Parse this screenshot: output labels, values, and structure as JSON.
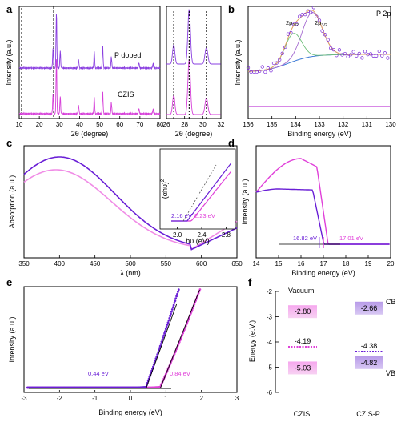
{
  "panels": [
    {
      "id": "a",
      "label": "a"
    },
    {
      "id": "b",
      "label": "b"
    },
    {
      "id": "c",
      "label": "c"
    },
    {
      "id": "d",
      "label": "d"
    },
    {
      "id": "e",
      "label": "e"
    },
    {
      "id": "f",
      "label": "f"
    }
  ],
  "colors": {
    "violet": "#6a1fd6",
    "magenta": "#e03fd9",
    "pink": "#f08ce6",
    "blue": "#3d7bd6",
    "green": "#6fbf7a",
    "purple_fit": "#a46ad0",
    "orange": "#e0a060"
  },
  "chart_data": [
    {
      "id": "a",
      "type": "line",
      "xlabel": "2θ (degree)",
      "ylabel": "Intensity (a.u.)",
      "xlim": [
        10,
        80
      ],
      "xticks": [
        "10",
        "20",
        "30",
        "40",
        "50",
        "60",
        "70",
        "80"
      ],
      "series": [
        {
          "name": "P doped",
          "color": "#6a1fd6",
          "peaks": [
            [
              26.8,
              0.35
            ],
            [
              28.5,
              1.0
            ],
            [
              30.4,
              0.3
            ],
            [
              39.5,
              0.15
            ],
            [
              47.3,
              0.3
            ],
            [
              51.5,
              0.4
            ],
            [
              55.8,
              0.2
            ],
            [
              69.5,
              0.1
            ],
            [
              76.5,
              0.08
            ]
          ]
        },
        {
          "name": "CZIS",
          "color": "#e03fd9",
          "peaks": [
            [
              26.8,
              0.35
            ],
            [
              28.5,
              1.0
            ],
            [
              30.4,
              0.3
            ],
            [
              39.5,
              0.15
            ],
            [
              47.3,
              0.3
            ],
            [
              51.5,
              0.4
            ],
            [
              55.8,
              0.2
            ],
            [
              69.5,
              0.1
            ],
            [
              76.5,
              0.08
            ]
          ]
        }
      ]
    },
    {
      "id": "a-inset",
      "type": "line",
      "xlabel": "2θ (degree)",
      "xlim": [
        26,
        32
      ],
      "xticks": [
        "26",
        "28",
        "30",
        "32"
      ],
      "dashed_lines_x": [
        26.8,
        28.5,
        30.4
      ]
    },
    {
      "id": "b",
      "type": "line",
      "xlabel": "Binding energy (eV)",
      "ylabel": "Intensity (a.u.)",
      "xlim": [
        136,
        130
      ],
      "xticks": [
        "136",
        "135",
        "134",
        "133",
        "132",
        "131",
        "130"
      ],
      "annotation": "P 2p",
      "peak_labels": [
        "2p",
        "1/2",
        "2p",
        "3/2"
      ]
    },
    {
      "id": "c",
      "type": "line",
      "xlabel": "λ (nm)",
      "ylabel": "Absorption (a.u.)",
      "xlim": [
        350,
        650
      ],
      "xticks": [
        "350",
        "400",
        "450",
        "500",
        "550",
        "600",
        "650"
      ],
      "inset": {
        "xlabel": "hυ (eV)",
        "ylabel": "(αhυ)",
        "ylabel_sup": "2",
        "xticks": [
          "2.0",
          "2.4",
          "2.8"
        ],
        "gap_labels": [
          "2.16 eV",
          "2.23 eV"
        ]
      }
    },
    {
      "id": "d",
      "type": "line",
      "xlabel": "Binding energy (eV)",
      "ylabel": "Intensity (a.u.)",
      "xlim": [
        14,
        20
      ],
      "xticks": [
        "14",
        "15",
        "16",
        "17",
        "18",
        "19",
        "20"
      ],
      "cutoffs": [
        {
          "label": "16.82 eV",
          "value": 16.82,
          "color": "#6a1fd6"
        },
        {
          "label": "17.01 eV",
          "value": 17.01,
          "color": "#e03fd9"
        }
      ]
    },
    {
      "id": "e",
      "type": "scatter",
      "xlabel": "Binding energy (eV)",
      "ylabel": "Intensity (a.u.)",
      "xlim": [
        -3,
        3
      ],
      "xticks": [
        "-3",
        "-2",
        "-1",
        "0",
        "1",
        "2",
        "3"
      ],
      "edges": [
        {
          "label": "0.44 eV",
          "value": 0.44,
          "color": "#6a1fd6"
        },
        {
          "label": "0.84 eV",
          "value": 0.84,
          "color": "#e03fd9"
        }
      ]
    },
    {
      "id": "f",
      "type": "bar",
      "ylabel": "Energy (e.V.)",
      "ylim": [
        -6,
        -2
      ],
      "yticks": [
        "-2",
        "-3",
        "-4",
        "-5",
        "-6"
      ],
      "categories": [
        "CZIS",
        "CZIS-P"
      ],
      "vacuum_label": "Vacuum",
      "levels": [
        {
          "name": "CZIS",
          "cb": -2.8,
          "ef": -4.19,
          "vb": -5.03,
          "cb_label": "-2.80",
          "ef_label": "-4.19",
          "vb_label": "-5.03"
        },
        {
          "name": "CZIS-P",
          "cb": -2.66,
          "ef": -4.38,
          "vb": -4.82,
          "cb_label": "-2.66",
          "ef_label": "-4.38",
          "vb_label": "-4.82"
        }
      ],
      "band_labels": {
        "cb": "CB",
        "vb": "VB"
      }
    }
  ]
}
